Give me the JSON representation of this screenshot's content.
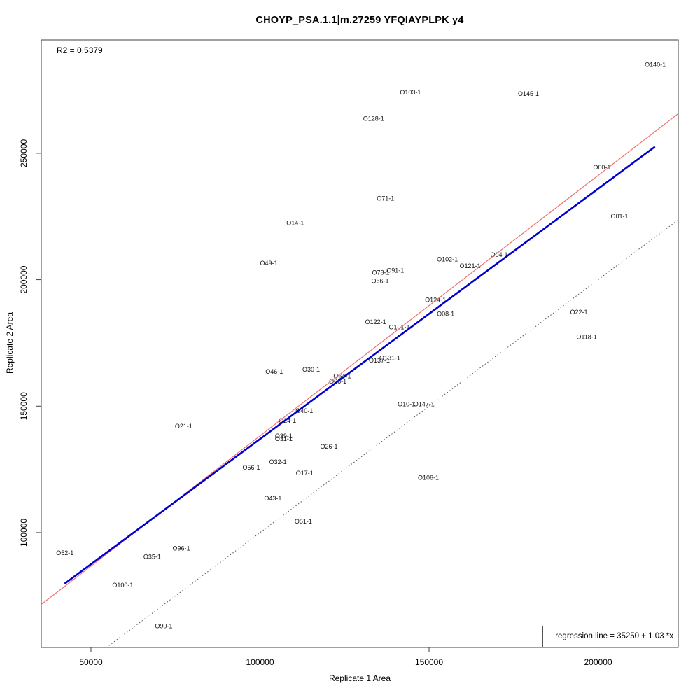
{
  "title": "CHOYP_PSA.1.1|m.27259 YFQIAYPLPK y4",
  "annotations": {
    "r2": "R2 = 0.5379",
    "legend": "regression line = 35250 + 1.03 *x"
  },
  "chart_data": {
    "type": "scatter",
    "title": "CHOYP_PSA.1.1|m.27259 YFQIAYPLPK y4",
    "xlabel": "Replicate 1 Area",
    "ylabel": "Replicate 2 Area",
    "r2_label": "R2 = 0.5379",
    "legend_text": "regression line = 35250 + 1.03 *x",
    "legend_position": "bottomright",
    "grid": false,
    "point_style": "text-labels",
    "x_ticks": [
      50000,
      100000,
      150000,
      200000
    ],
    "y_ticks": [
      100000,
      150000,
      200000,
      250000
    ],
    "xlim": [
      35300,
      223700
    ],
    "ylim": [
      54600,
      294800
    ],
    "points": [
      {
        "label": "O140-1",
        "x": 216900,
        "y": 285000
      },
      {
        "label": "O103-1",
        "x": 144500,
        "y": 274000
      },
      {
        "label": "O145-1",
        "x": 179400,
        "y": 273500
      },
      {
        "label": "O128-1",
        "x": 133600,
        "y": 263700
      },
      {
        "label": "O60-1",
        "x": 201100,
        "y": 244400
      },
      {
        "label": "O71-1",
        "x": 137100,
        "y": 232100
      },
      {
        "label": "O01-1",
        "x": 206300,
        "y": 225100
      },
      {
        "label": "O14-1",
        "x": 110400,
        "y": 222500
      },
      {
        "label": "O49-1",
        "x": 102600,
        "y": 206500
      },
      {
        "label": "O102-1",
        "x": 155400,
        "y": 208100
      },
      {
        "label": "O04-1",
        "x": 170700,
        "y": 209800
      },
      {
        "label": "O121-1",
        "x": 162100,
        "y": 205400
      },
      {
        "label": "O91-1",
        "x": 140000,
        "y": 203600
      },
      {
        "label": "O78-1",
        "x": 135700,
        "y": 202800
      },
      {
        "label": "O66-1",
        "x": 135500,
        "y": 199400
      },
      {
        "label": "O124-1",
        "x": 151900,
        "y": 192000
      },
      {
        "label": "O08-1",
        "x": 154900,
        "y": 186500
      },
      {
        "label": "O22-1",
        "x": 194300,
        "y": 187200
      },
      {
        "label": "O122-1",
        "x": 134200,
        "y": 183300
      },
      {
        "label": "O101-1",
        "x": 141200,
        "y": 181200
      },
      {
        "label": "O118-1",
        "x": 196600,
        "y": 177300
      },
      {
        "label": "O137-1",
        "x": 135300,
        "y": 168100
      },
      {
        "label": "O131-1",
        "x": 138400,
        "y": 169000
      },
      {
        "label": "O30-1",
        "x": 115100,
        "y": 164400
      },
      {
        "label": "O46-1",
        "x": 104200,
        "y": 163600
      },
      {
        "label": "O64-1",
        "x": 124300,
        "y": 161900
      },
      {
        "label": "O06-1",
        "x": 123000,
        "y": 159800
      },
      {
        "label": "O10-1",
        "x": 143300,
        "y": 150700
      },
      {
        "label": "O147-1",
        "x": 148500,
        "y": 150800
      },
      {
        "label": "O40-1",
        "x": 113100,
        "y": 148200
      },
      {
        "label": "O24-1",
        "x": 108100,
        "y": 144300
      },
      {
        "label": "O39-1",
        "x": 107000,
        "y": 138200
      },
      {
        "label": "O31-1",
        "x": 107000,
        "y": 137100
      },
      {
        "label": "O21-1",
        "x": 77400,
        "y": 142000
      },
      {
        "label": "O26-1",
        "x": 120400,
        "y": 134000
      },
      {
        "label": "O32-1",
        "x": 105300,
        "y": 127900
      },
      {
        "label": "O56-1",
        "x": 97400,
        "y": 125700
      },
      {
        "label": "O17-1",
        "x": 113200,
        "y": 123500
      },
      {
        "label": "O106-1",
        "x": 149800,
        "y": 121700
      },
      {
        "label": "O43-1",
        "x": 103800,
        "y": 113600
      },
      {
        "label": "O51-1",
        "x": 112800,
        "y": 104400
      },
      {
        "label": "O52-1",
        "x": 42300,
        "y": 92000
      },
      {
        "label": "O96-1",
        "x": 76700,
        "y": 93800
      },
      {
        "label": "O35-1",
        "x": 68100,
        "y": 90500
      },
      {
        "label": "O100-1",
        "x": 59400,
        "y": 79200
      },
      {
        "label": "O90-1",
        "x": 71500,
        "y": 63100
      }
    ],
    "lines": [
      {
        "name": "identity-line",
        "color": "#555555",
        "style": "dotted",
        "width": 1,
        "x1": 54600,
        "y1": 54600,
        "x2": 223700,
        "y2": 223700
      },
      {
        "name": "regression-line",
        "color": "#ee7272",
        "style": "solid",
        "width": 1.2,
        "x1": 35300,
        "y1": 71610,
        "x2": 223700,
        "y2": 265660
      },
      {
        "name": "fit-line",
        "color": "#0000cc",
        "style": "solid",
        "width": 2.6,
        "x1": 42200,
        "y1": 79800,
        "x2": 216800,
        "y2": 252600
      }
    ],
    "colors": {
      "regression": "#ee7272",
      "fit": "#0000cc",
      "identity": "#555555",
      "axis": "#404040",
      "text": "#000000"
    }
  }
}
